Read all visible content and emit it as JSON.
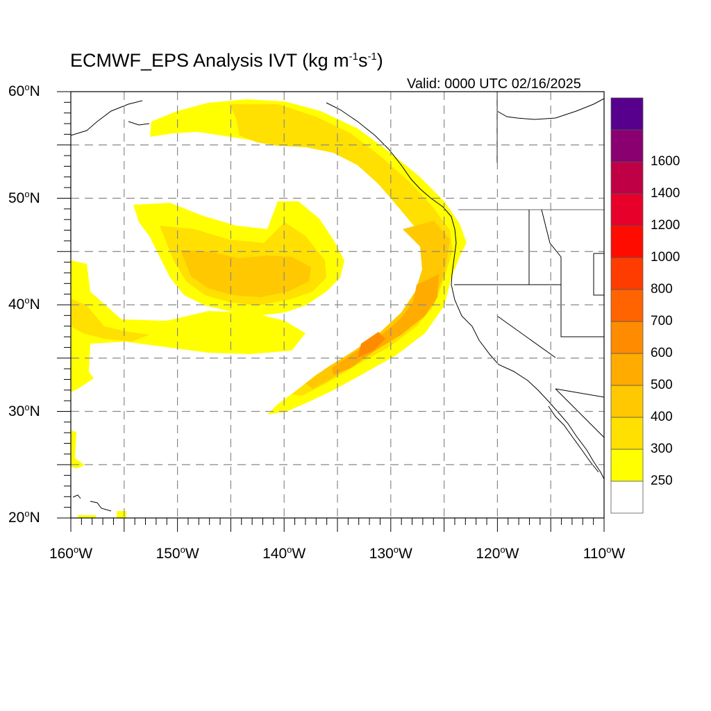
{
  "title": {
    "main": "ECMWF_EPS Analysis IVT (kg m",
    "exp1": "-1",
    "mid": "s",
    "exp2": "-1",
    "close": ")"
  },
  "valid_label": "Valid: 0000 UTC 02/16/2025",
  "map": {
    "region": {
      "lon_min": -160,
      "lon_max": -110,
      "lat_min": 20,
      "lat_max": 60
    },
    "lat_ticks": [
      {
        "value": 60,
        "num": "60",
        "deg": "o",
        "hemi": "N"
      },
      {
        "value": 50,
        "num": "50",
        "deg": "o",
        "hemi": "N"
      },
      {
        "value": 40,
        "num": "40",
        "deg": "o",
        "hemi": "N"
      },
      {
        "value": 30,
        "num": "30",
        "deg": "o",
        "hemi": "N"
      },
      {
        "value": 20,
        "num": "20",
        "deg": "o",
        "hemi": "N"
      }
    ],
    "lon_ticks": [
      {
        "value": -160,
        "num": "160",
        "deg": "o",
        "hemi": "W"
      },
      {
        "value": -150,
        "num": "150",
        "deg": "o",
        "hemi": "W"
      },
      {
        "value": -140,
        "num": "140",
        "deg": "o",
        "hemi": "W"
      },
      {
        "value": -130,
        "num": "130",
        "deg": "o",
        "hemi": "W"
      },
      {
        "value": -120,
        "num": "120",
        "deg": "o",
        "hemi": "W"
      },
      {
        "value": -110,
        "num": "110",
        "deg": "o",
        "hemi": "W"
      }
    ],
    "gridline_style": "dashed"
  },
  "colorbar": {
    "levels": [
      {
        "label": "",
        "color": "#ffffff"
      },
      {
        "label": "250",
        "color": "#ffff00"
      },
      {
        "label": "300",
        "color": "#ffe000"
      },
      {
        "label": "400",
        "color": "#ffc800"
      },
      {
        "label": "500",
        "color": "#ffab00"
      },
      {
        "label": "600",
        "color": "#ff8c00"
      },
      {
        "label": "700",
        "color": "#ff6400"
      },
      {
        "label": "800",
        "color": "#ff3c00"
      },
      {
        "label": "1000",
        "color": "#ff0c00"
      },
      {
        "label": "1200",
        "color": "#e6002a"
      },
      {
        "label": "1400",
        "color": "#bf0045"
      },
      {
        "label": "1600",
        "color": "#8a0070"
      },
      {
        "label": "",
        "color": "#58008e"
      }
    ]
  },
  "features": {
    "ar_band": "yellow-orange atmospheric river plume arcing from the subtropics toward the Pacific Northwest coast",
    "cyclone_blob": "enclosed moisture region centered near 42N 142W"
  }
}
